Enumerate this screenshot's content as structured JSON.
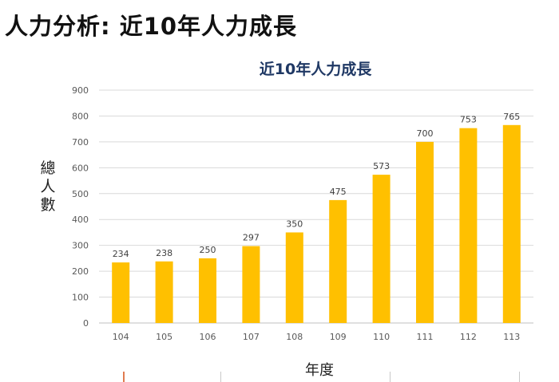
{
  "page": {
    "title": "人力分析: 近10年人力成長"
  },
  "colors": {
    "bar": "#ffc000",
    "title": "#1f3864",
    "grid": "#d9d9d9",
    "tick": "#595959",
    "label": "#404040"
  },
  "chart_data": {
    "type": "bar",
    "title": "近10年人力成長",
    "xlabel": "年度",
    "ylabel": "總人數",
    "ylabel_chars": [
      "總",
      "人",
      "數"
    ],
    "categories": [
      "104",
      "105",
      "106",
      "107",
      "108",
      "109",
      "110",
      "111",
      "112",
      "113"
    ],
    "values": [
      234,
      238,
      250,
      297,
      350,
      475,
      573,
      700,
      753,
      765
    ],
    "ylim": [
      0,
      900
    ],
    "yticks": [
      0,
      100,
      200,
      300,
      400,
      500,
      600,
      700,
      800,
      900
    ],
    "grid": true,
    "data_labels": true
  }
}
